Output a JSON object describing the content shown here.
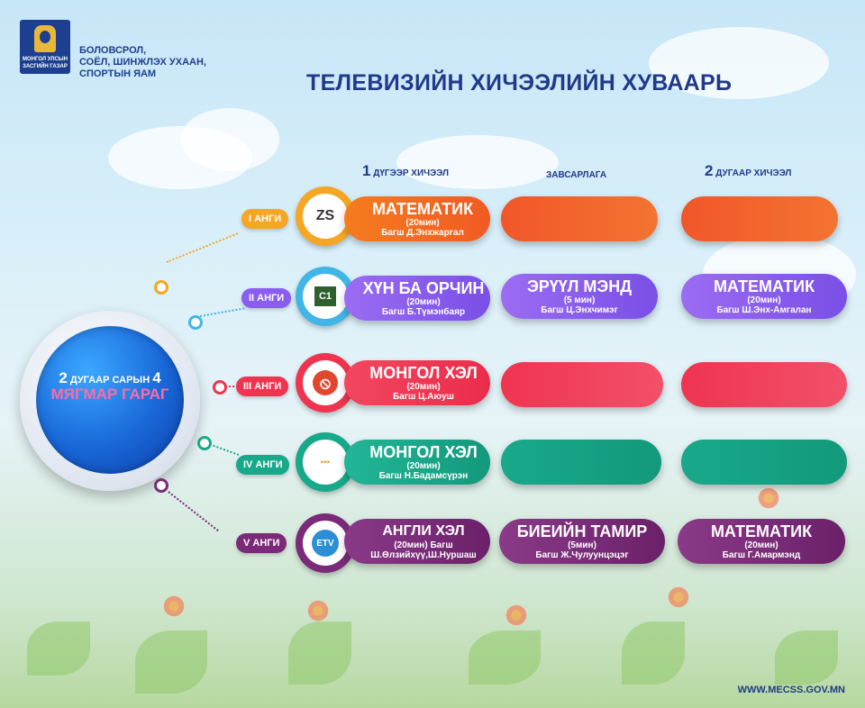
{
  "ministry": {
    "logo_lines": [
      "МОНГОЛ УЛСЫН",
      "ЗАСГИЙН ГАЗАР"
    ],
    "name_lines": [
      "БОЛОВСРОЛ,",
      "СОЁЛ, ШИНЖЛЭХ УХААН,",
      "СПОРТЫН ЯАМ"
    ]
  },
  "title": "ТЕЛЕВИЗИЙН ХИЧЭЭЛИЙН ХУВААРЬ",
  "columns": {
    "lesson1_num": "1",
    "lesson1_label": "ДҮГЭЭР ХИЧЭЭЛ",
    "break_label": "ЗАВСАРЛАГА",
    "lesson2_num": "2",
    "lesson2_label": "ДУГААР ХИЧЭЭЛ"
  },
  "date": {
    "prefix": "2",
    "month": "ДУГААР САРЫН",
    "day": "4",
    "weekday": "МЯГМАР ГАРАГ"
  },
  "rows": [
    {
      "grade": "I АНГИ",
      "channel_icon": "zs-channel-logo",
      "channel_text": "ZS",
      "color": "#f15a22",
      "lesson1": {
        "subject": "МАТЕМАТИК",
        "duration": "(20мин)",
        "teacher": "Багш Д.Энхжаргал"
      },
      "break": null,
      "lesson2": null
    },
    {
      "grade": "II АНГИ",
      "channel_icon": "c1-channel-logo",
      "channel_text": "C1",
      "color": "#8a5cf0",
      "lesson1": {
        "subject": "ХҮН БА ОРЧИН",
        "duration": "(20мин)",
        "teacher": "Багш Б.Түмэнбаяр"
      },
      "break": {
        "subject": "ЭРҮҮЛ МЭНД",
        "duration": "(5 мин)",
        "teacher": "Багш Ц.Энхчимэг"
      },
      "lesson2": {
        "subject": "МАТЕМАТИК",
        "duration": "(20мин)",
        "teacher": "Багш Ш.Энх-Амгалан"
      }
    },
    {
      "grade": "III АНГИ",
      "channel_icon": "channel-logo-red",
      "channel_text": "⦸",
      "color": "#ef3450",
      "lesson1": {
        "subject": "МОНГОЛ ХЭЛ",
        "duration": "(20мин)",
        "teacher": "Багш Ц.Аюуш"
      },
      "break": null,
      "lesson2": null
    },
    {
      "grade": "IV АНГИ",
      "channel_icon": "channel-logo-green",
      "channel_text": "▪▪▪",
      "color": "#18a98a",
      "lesson1": {
        "subject": "МОНГОЛ ХЭЛ",
        "duration": "(20мин)",
        "teacher": "Багш Н.Бадамсүрэн"
      },
      "break": null,
      "lesson2": null
    },
    {
      "grade": "V АНГИ",
      "channel_icon": "etv-channel-logo",
      "channel_text": "ETV",
      "color": "#7a2a78",
      "lesson1": {
        "subject": "АНГЛИ ХЭЛ",
        "duration": "(20мин) Багш",
        "teacher": "Ш.Өлзийхүү,Ш.Нуршаш"
      },
      "break": {
        "subject": "БИЕИЙН ТАМИР",
        "duration": "(5мин)",
        "teacher": "Багш Ж.Чулуунцэцэг"
      },
      "lesson2": {
        "subject": "МАТЕМАТИК",
        "duration": "(20мин)",
        "teacher": "Багш Г.Амармэнд"
      }
    }
  ],
  "footer": "WWW.MECSS.GOV.MN",
  "colors": {
    "title": "#1f3a8a",
    "weekday": "#ff6aa8",
    "row1": "#f15a22",
    "row2": "#8a5cf0",
    "row3": "#ef3450",
    "row4": "#18a98a",
    "row5": "#7a2a78"
  }
}
